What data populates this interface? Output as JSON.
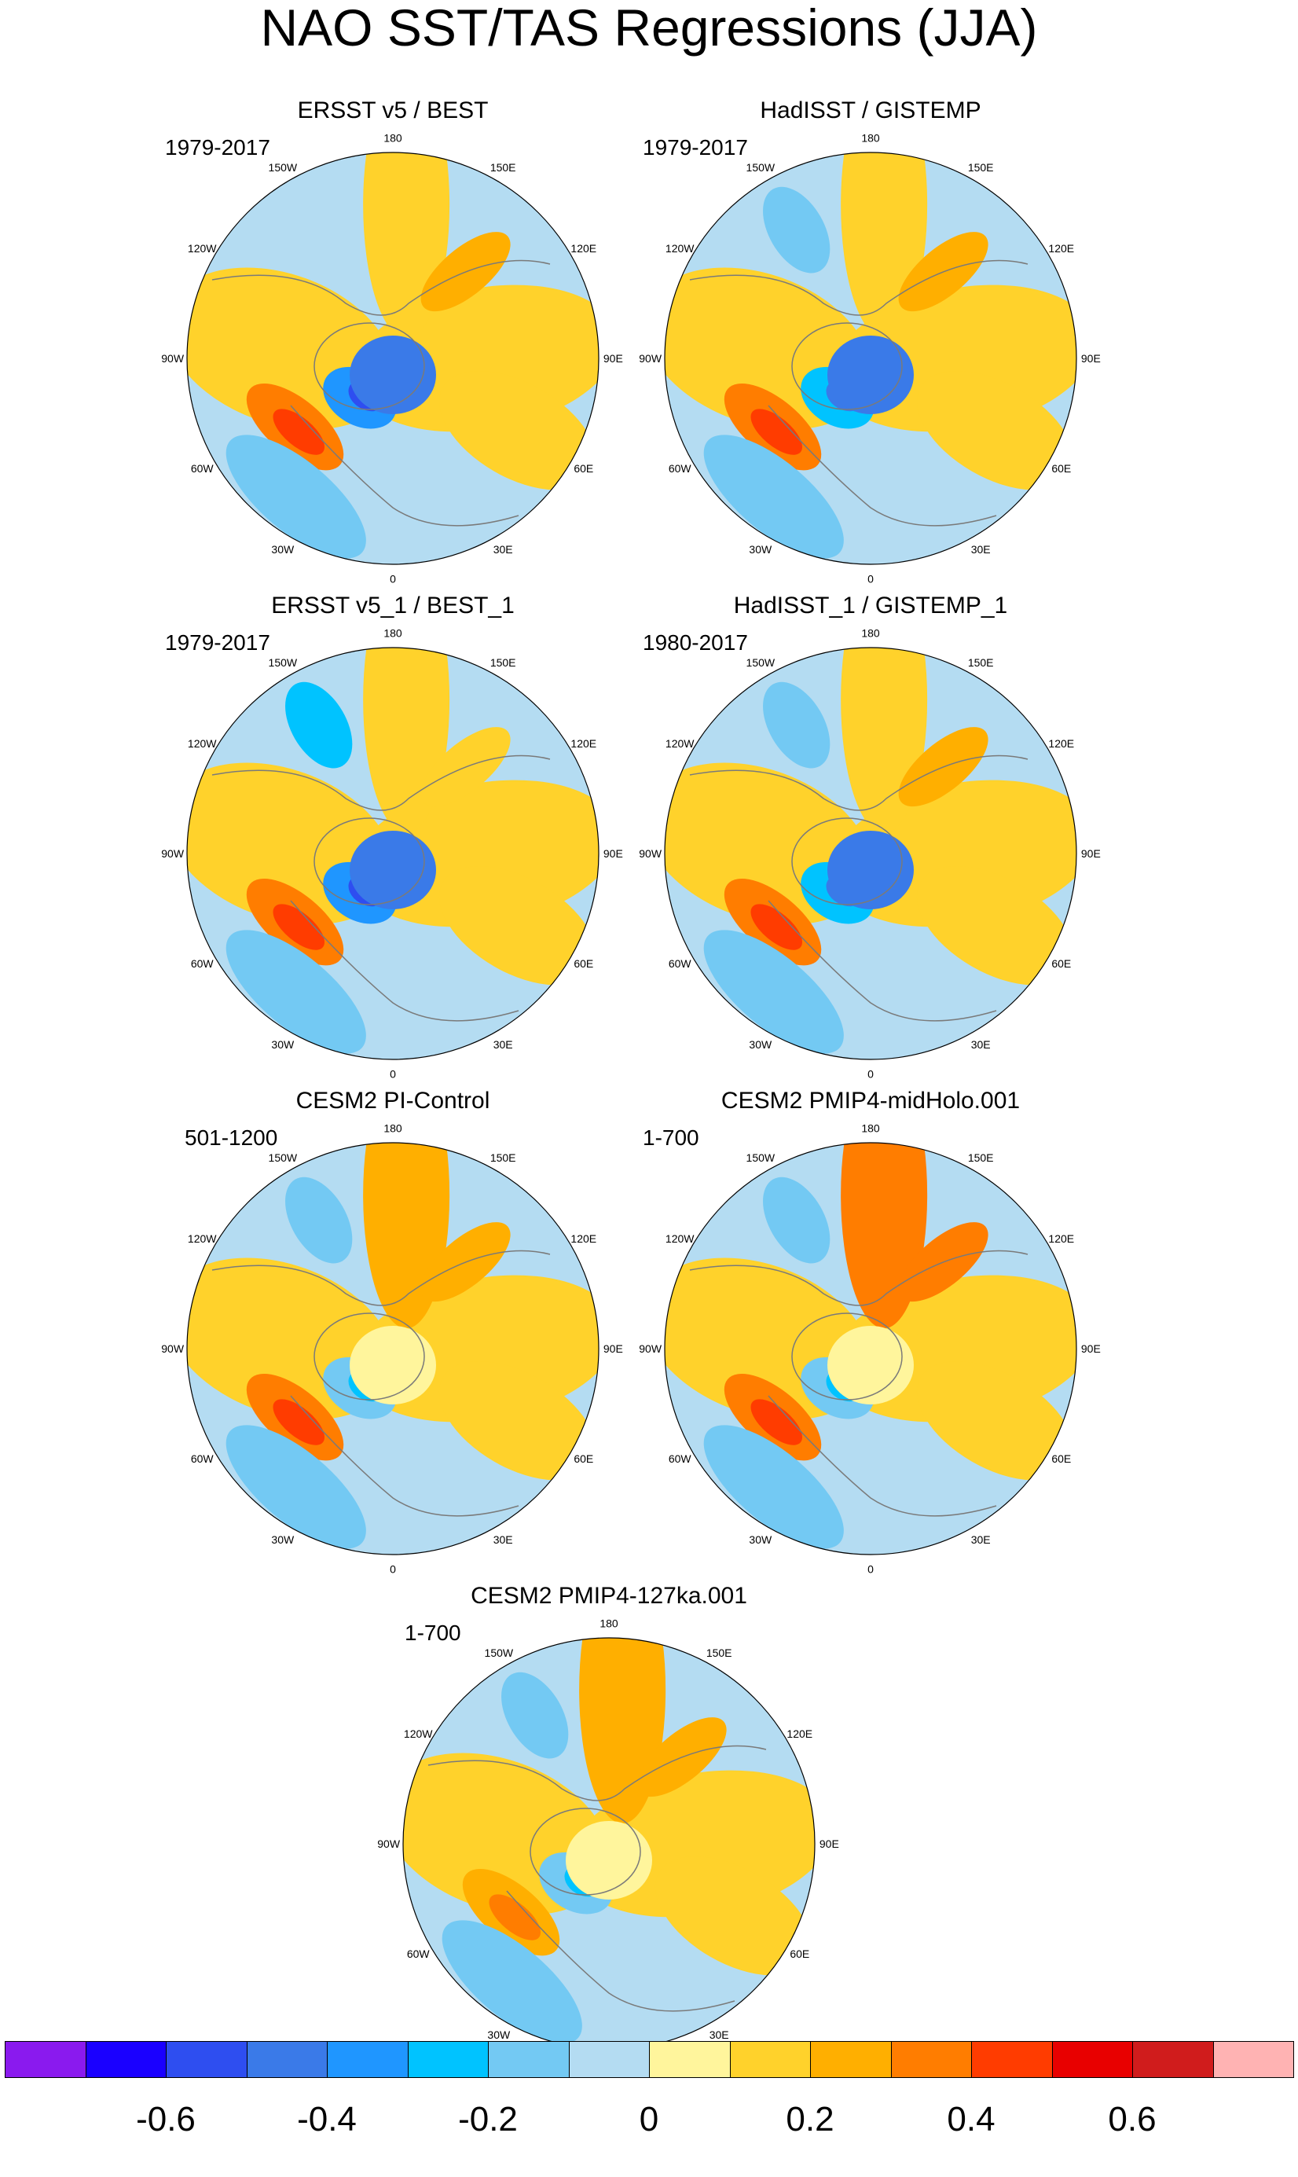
{
  "title": "NAO SST/TAS Regressions (JJA)",
  "lon_labels": [
    "180",
    "150E",
    "120E",
    "90E",
    "60E",
    "30E",
    "0",
    "30W",
    "60W",
    "90W",
    "120W",
    "150W"
  ],
  "panels": [
    {
      "title": "ERSST v5 / BEST",
      "years": "1979-2017",
      "pattern": {
        "labrador": -0.55,
        "arctic": -0.45,
        "gulfstream": 0.35,
        "nepac": 0.15,
        "npac": -0.1,
        "land": 0.1,
        "siberia": 0.2
      }
    },
    {
      "title": "HadISST / GISTEMP",
      "years": "1979-2017",
      "pattern": {
        "labrador": -0.5,
        "arctic": -0.45,
        "gulfstream": 0.3,
        "nepac": 0.1,
        "npac": -0.15,
        "land": 0.1,
        "siberia": 0.25
      }
    },
    {
      "title": "ERSST v5_1 / BEST_1",
      "years": "1979-2017",
      "pattern": {
        "labrador": -0.55,
        "arctic": -0.5,
        "gulfstream": 0.3,
        "nepac": 0.1,
        "npac": -0.25,
        "land": 0.1,
        "siberia": 0.15
      }
    },
    {
      "title": "HadISST_1 / GISTEMP_1",
      "years": "1980-2017",
      "pattern": {
        "labrador": -0.5,
        "arctic": -0.45,
        "gulfstream": 0.3,
        "nepac": 0.1,
        "npac": -0.2,
        "land": 0.1,
        "siberia": 0.2
      }
    },
    {
      "title": "CESM2 PI-Control",
      "years": "501-1200",
      "pattern": {
        "labrador": -0.3,
        "arctic": 0.05,
        "gulfstream": 0.3,
        "nepac": 0.25,
        "npac": -0.2,
        "land": 0.1,
        "siberia": 0.2
      }
    },
    {
      "title": "CESM2 PMIP4-midHolo.001",
      "years": "1-700",
      "pattern": {
        "labrador": -0.3,
        "arctic": 0.05,
        "gulfstream": 0.3,
        "nepac": 0.3,
        "npac": -0.2,
        "land": 0.1,
        "siberia": 0.3
      }
    },
    {
      "title": "CESM2 PMIP4-127ka.001",
      "years": "1-700",
      "pattern": {
        "labrador": -0.3,
        "arctic": 0.05,
        "gulfstream": 0.25,
        "nepac": 0.25,
        "npac": -0.2,
        "land": 0.1,
        "siberia": 0.2
      }
    }
  ],
  "colorbar": {
    "colors": [
      "#8a1aee",
      "#1a00ff",
      "#2e4ef0",
      "#3a7ae8",
      "#1f96ff",
      "#00c3ff",
      "#73c9f3",
      "#b4dcf2",
      "#fff59c",
      "#ffd22b",
      "#ffaf00",
      "#ff7d00",
      "#ff3c00",
      "#e80000",
      "#d01c1c",
      "#ffb3b3"
    ],
    "bounds": [
      -0.7,
      -0.6,
      -0.5,
      -0.4,
      -0.3,
      -0.2,
      -0.1,
      0,
      0.1,
      0.2,
      0.3,
      0.4,
      0.5,
      0.6,
      0.7
    ],
    "tick_labels": [
      "-0.6",
      "-0.4",
      "-0.2",
      "0",
      "0.2",
      "0.4",
      "0.6"
    ]
  }
}
